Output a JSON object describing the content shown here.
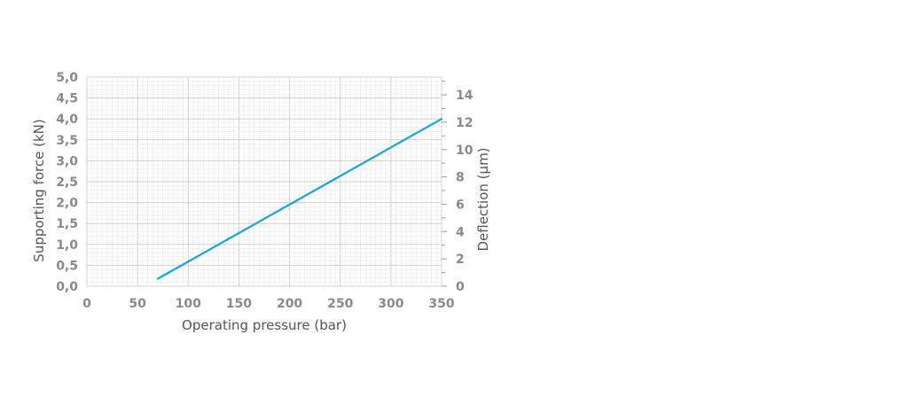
{
  "chart_data": {
    "type": "line",
    "title": "",
    "xlabel": "Operating pressure (bar)",
    "ylabel": "Supporting force (kN)",
    "y2label": "Deflection (µm)",
    "xlim": [
      0,
      350
    ],
    "ylim": [
      0,
      5
    ],
    "y2lim": [
      0,
      15.3
    ],
    "x_ticks": [
      "0",
      "50",
      "100",
      "150",
      "200",
      "250",
      "300",
      "350"
    ],
    "y_ticks": [
      "0,0",
      "0,5",
      "1,0",
      "1,5",
      "2,0",
      "2,5",
      "3,0",
      "3,5",
      "4,0",
      "4,5",
      "5,0"
    ],
    "y2_ticks": [
      "0",
      "2",
      "4",
      "6",
      "8",
      "10",
      "12",
      "14"
    ],
    "grid": true,
    "line_color": "#1aa3d4",
    "series": [
      {
        "x": [
          70,
          350
        ],
        "y": [
          0.18,
          4.0
        ]
      }
    ]
  }
}
